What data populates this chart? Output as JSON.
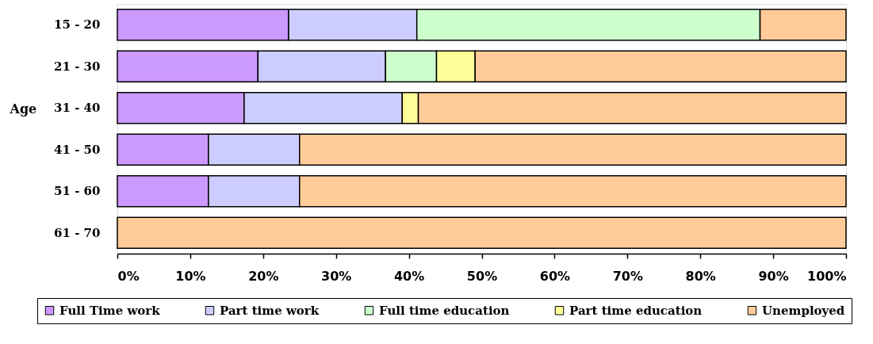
{
  "chart_data": {
    "type": "bar",
    "orientation": "horizontal",
    "stacked": true,
    "ylabel": "Age",
    "categories": [
      "15 - 20",
      "21 - 30",
      "31 - 40",
      "41 - 50",
      "51 - 60",
      "61 - 70"
    ],
    "series": [
      {
        "name": "Full Time work",
        "color": "#cc99ff",
        "values": [
          23.5,
          19.3,
          17.4,
          12.5,
          12.5,
          0
        ]
      },
      {
        "name": "Part time work",
        "color": "#ccccff",
        "values": [
          17.6,
          17.5,
          21.7,
          12.5,
          12.5,
          0
        ]
      },
      {
        "name": "Full time education",
        "color": "#ccffcc",
        "values": [
          47.1,
          7.0,
          0,
          0,
          0,
          0
        ]
      },
      {
        "name": "Part time education",
        "color": "#ffff99",
        "values": [
          0,
          5.3,
          2.2,
          0,
          0,
          0
        ]
      },
      {
        "name": "Unemployed",
        "color": "#ffcc99",
        "values": [
          11.8,
          50.9,
          58.7,
          75,
          75,
          100
        ]
      }
    ],
    "xlim": [
      0,
      100
    ],
    "xticks": [
      {
        "value": 0,
        "label": "0%"
      },
      {
        "value": 10,
        "label": "10%"
      },
      {
        "value": 20,
        "label": "20%"
      },
      {
        "value": 30,
        "label": "30%"
      },
      {
        "value": 40,
        "label": "40%"
      },
      {
        "value": 50,
        "label": "50%"
      },
      {
        "value": 60,
        "label": "60%"
      },
      {
        "value": 70,
        "label": "70%"
      },
      {
        "value": 80,
        "label": "80%"
      },
      {
        "value": 90,
        "label": "90%"
      },
      {
        "value": 100,
        "label": "100%"
      }
    ],
    "legend": "bottom"
  }
}
